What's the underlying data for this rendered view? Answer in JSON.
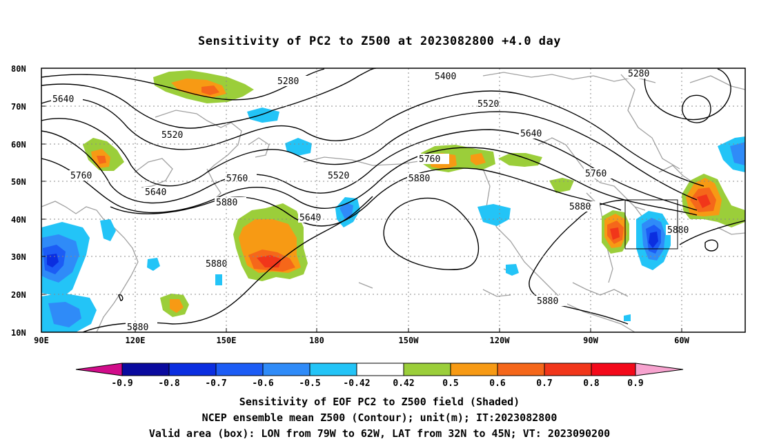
{
  "title": "Sensitivity of PC2 to Z500 at 2023082800 +4.0 day",
  "lat_labels": [
    "80N",
    "70N",
    "60N",
    "50N",
    "40N",
    "30N",
    "20N",
    "10N"
  ],
  "lon_labels": [
    "90E",
    "120E",
    "150E",
    "180",
    "150W",
    "120W",
    "90W",
    "60W"
  ],
  "colorbar": {
    "labels": [
      "-0.9",
      "-0.8",
      "-0.7",
      "-0.6",
      "-0.5",
      "-0.42",
      "0.42",
      "0.5",
      "0.6",
      "0.7",
      "0.8",
      "0.9"
    ],
    "colors": [
      "#0a0a9e",
      "#0b2ee0",
      "#1c5cf5",
      "#2f8bf8",
      "#23c4f7",
      "#ffffff",
      "#9bce3a",
      "#f79a14",
      "#f5671a",
      "#f1361a",
      "#f3091a"
    ],
    "low_end_color": "#d10c8a",
    "high_end_color": "#f7a3cf"
  },
  "contour_labels": [
    "5280",
    "5400",
    "5520",
    "5640",
    "5760",
    "5880"
  ],
  "captions": [
    "Sensitivity of EOF PC2 to Z500 field (Shaded)",
    "NCEP ensemble mean Z500 (Contour); unit(m); IT:2023082800",
    "Valid area (box): LON from 79W to 62W, LAT from 32N to 45N; VT: 2023090200"
  ]
}
